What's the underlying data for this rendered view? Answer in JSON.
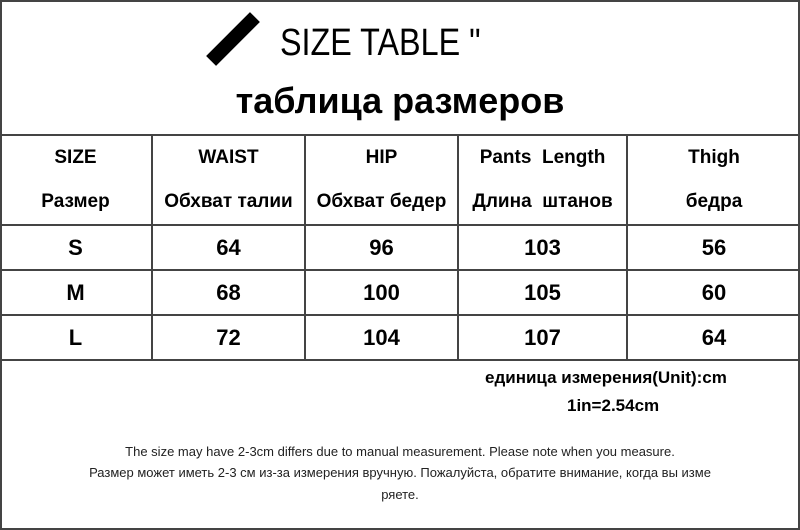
{
  "title": {
    "en": "SIZE TABLE \"",
    "ru": "таблица размеров"
  },
  "table": {
    "headers": [
      {
        "en": "SIZE",
        "ru": "Размер"
      },
      {
        "en": "WAIST",
        "ru": "Обхват талии"
      },
      {
        "en": "HIP",
        "ru": "Обхват бедер"
      },
      {
        "en": "Pants  Length",
        "ru": "Длина  штанов"
      },
      {
        "en": "Thigh",
        "ru": "бедра"
      }
    ],
    "rows": [
      [
        "S",
        "64",
        "96",
        "103",
        "56"
      ],
      [
        "M",
        "68",
        "100",
        "105",
        "60"
      ],
      [
        "L",
        "72",
        "104",
        "107",
        "64"
      ]
    ]
  },
  "unit": "единица измерения(Unit):cm",
  "conversion": "1in=2.54cm",
  "note_en": "The size may have 2-3cm differs due to manual measurement. Please note when you measure.",
  "note_ru_line1": "Размер может иметь 2-3 см из-за измерения вручную. Пожалуйста, обратите внимание, когда вы изме",
  "note_ru_line2": "ряете."
}
